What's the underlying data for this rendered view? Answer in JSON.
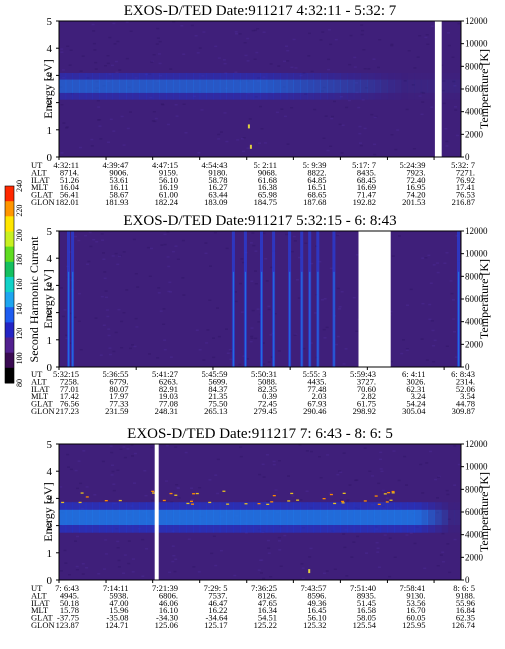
{
  "row_labels": [
    "UT",
    "ALT",
    "ILAT",
    "MLT",
    "GLAT",
    "GLON"
  ],
  "colorbar": {
    "label": "Second Harmonic Current",
    "ticks": [
      "80",
      "100",
      "120",
      "140",
      "160",
      "180",
      "200",
      "220",
      "240"
    ],
    "colors": [
      "#000000",
      "#3a0a52",
      "#52208f",
      "#2424c4",
      "#1e5cf0",
      "#1ea5f0",
      "#12d2c8",
      "#15c060",
      "#5fdc20",
      "#c8f020",
      "#ffe600",
      "#ff9600",
      "#ff2800"
    ]
  },
  "chart_data": [
    {
      "type": "heatmap",
      "title": "EXOS-D/TED   Date:911217  4:32:11 - 5:32: 7",
      "ylabel": "Energy [eV]",
      "ylabel_right": "Temperature [K]",
      "ylim": [
        0,
        5
      ],
      "yticks": [
        "0",
        "1",
        "2",
        "3",
        "4",
        "5"
      ],
      "ylim_right": [
        0,
        12000
      ],
      "yticks_right": [
        "0",
        "2000",
        "4000",
        "6000",
        "8000",
        "10000",
        "12000"
      ],
      "x_fractions": [
        0.0,
        0.117,
        0.233,
        0.35,
        0.467,
        0.583,
        0.7,
        0.817,
        0.933
      ],
      "data_gaps": [
        [
          0.935,
          0.952
        ]
      ],
      "band": {
        "center_ev": 2.6,
        "halfwidth_ev": 0.35,
        "intensity": 0.6,
        "fade_fraction": 0.5
      },
      "bright_columns": [],
      "dots": [
        {
          "x": 0.47,
          "y_ev": 1.2
        },
        {
          "x": 0.475,
          "y_ev": 0.45
        }
      ],
      "table": [
        [
          "4:32:11",
          "4:39:47",
          "4:47:15",
          "4:54:43",
          "5: 2:11",
          "5: 9:39",
          "5:17: 7",
          "5:24:39",
          "5:32: 7"
        ],
        [
          "8714.",
          "9006.",
          "9159.",
          "9180.",
          "9068.",
          "8822.",
          "8435.",
          "7923.",
          "7271."
        ],
        [
          "51.26",
          "53.61",
          "56.10",
          "58.78",
          "61.68",
          "64.85",
          "68.45",
          "72.40",
          "76.92"
        ],
        [
          "16.04",
          "16.11",
          "16.19",
          "16.27",
          "16.38",
          "16.51",
          "16.69",
          "16.95",
          "17.41"
        ],
        [
          "56.41",
          "58.67",
          "61.00",
          "63.44",
          "65.98",
          "68.65",
          "71.47",
          "74.20",
          "76.53"
        ],
        [
          "182.01",
          "181.93",
          "182.24",
          "183.09",
          "184.75",
          "187.68",
          "192.82",
          "201.53",
          "216.87"
        ]
      ]
    },
    {
      "type": "heatmap",
      "title": "EXOS-D/TED   Date:911217  5:32:15 - 6: 8:43",
      "ylabel": "Energy [eV]",
      "ylabel_right": "Temperature [K]",
      "ylim": [
        0,
        5
      ],
      "yticks": [
        "0",
        "1",
        "2",
        "3",
        "4",
        "5"
      ],
      "ylim_right": [
        0,
        12000
      ],
      "yticks_right": [
        "0",
        "2000",
        "4000",
        "6000",
        "8000",
        "10000",
        "12000"
      ],
      "x_fractions": [
        0.0,
        0.192,
        0.383,
        0.575,
        0.767,
        0.958,
        1.15,
        1.342,
        1.534
      ],
      "data_gaps": [
        [
          0.745,
          0.825
        ]
      ],
      "band": null,
      "bright_columns": [
        0.02,
        0.03,
        0.43,
        0.46,
        0.5,
        0.53,
        0.57,
        0.6,
        0.62,
        0.64,
        0.68,
        0.99
      ],
      "dots": [],
      "table": [
        [
          "5:32:15",
          "5:36:55",
          "5:41:27",
          "5:45:59",
          "5:50:31",
          "5:55: 3",
          "5:59:43",
          "6: 4:11",
          "6: 8:43"
        ],
        [
          "7258.",
          "6779.",
          "6263.",
          "5699.",
          "5088.",
          "4435.",
          "3727.",
          "3026.",
          "2314."
        ],
        [
          "77.01",
          "80.07",
          "82.91",
          "84.37",
          "82.35",
          "77.48",
          "70.60",
          "62.31",
          "52.06"
        ],
        [
          "17.42",
          "17.97",
          "19.03",
          "21.35",
          "0.39",
          "2.03",
          "2.82",
          "3.24",
          "3.54"
        ],
        [
          "76.56",
          "77.33",
          "77.08",
          "75.50",
          "72.45",
          "67.93",
          "61.75",
          "54.24",
          "44.78"
        ],
        [
          "217.23",
          "231.59",
          "248.31",
          "265.13",
          "279.45",
          "290.46",
          "298.92",
          "305.04",
          "309.87"
        ]
      ]
    },
    {
      "type": "heatmap",
      "title": "EXOS-D/TED   Date:911217  7: 6:43 - 8: 6: 5",
      "ylabel": "Energy [eV]",
      "ylabel_right": "Temperature [K]",
      "ylim": [
        0,
        5
      ],
      "yticks": [
        "0",
        "1",
        "2",
        "3",
        "4",
        "5"
      ],
      "ylim_right": [
        0,
        12000
      ],
      "yticks_right": [
        "0",
        "2000",
        "4000",
        "6000",
        "8000",
        "10000",
        "12000"
      ],
      "x_fractions": [
        0.0,
        0.117,
        0.233,
        0.35,
        0.467,
        0.583,
        0.7,
        0.817,
        0.933
      ],
      "data_gaps": [
        [
          0.238,
          0.248
        ]
      ],
      "band": {
        "center_ev": 2.3,
        "halfwidth_ev": 0.4,
        "intensity": 0.85,
        "fade_fraction": 0.88
      },
      "bright_columns": [],
      "dots": [
        {
          "x": 0.62,
          "y_ev": 0.4
        }
      ],
      "speckle": {
        "ev_min": 2.8,
        "ev_max": 3.3,
        "count": 42
      },
      "table": [
        [
          "7: 6:43",
          "7:14:11",
          "7:21:39",
          "7:29: 5",
          "7:36:25",
          "7:43:57",
          "7:51:40",
          "7:58:41",
          "8: 6: 5"
        ],
        [
          "4945.",
          "5938.",
          "6806.",
          "7537.",
          "8126.",
          "8596.",
          "8935.",
          "9130.",
          "9188."
        ],
        [
          "50.18",
          "47.00",
          "46.06",
          "46.47",
          "47.65",
          "49.36",
          "51.45",
          "53.56",
          "55.96"
        ],
        [
          "15.78",
          "15.96",
          "16.10",
          "16.22",
          "16.34",
          "16.45",
          "16.58",
          "16.70",
          "16.84"
        ],
        [
          "-37.75",
          "-35.08",
          "-34.30",
          "-34.64",
          "54.51",
          "56.10",
          "58.05",
          "60.05",
          "62.35"
        ],
        [
          "123.87",
          "124.71",
          "125.06",
          "125.17",
          "125.22",
          "125.32",
          "125.54",
          "125.95",
          "126.74"
        ]
      ]
    }
  ]
}
